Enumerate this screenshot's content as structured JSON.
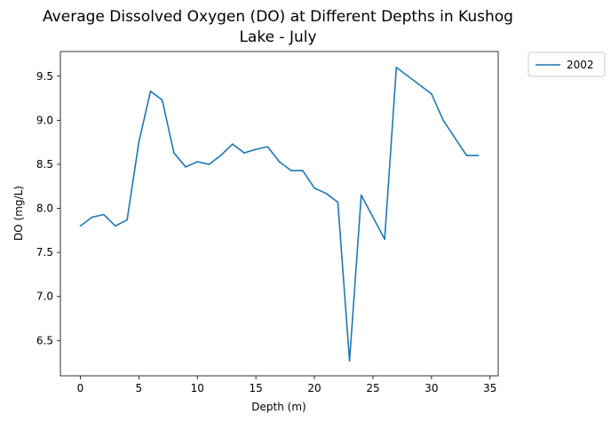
{
  "chart_data": {
    "type": "line",
    "title": "Average Dissolved Oxygen (DO) at Different Depths in Kushog Lake - July",
    "title_lines": [
      "Average Dissolved Oxygen (DO) at Different Depths in Kushog",
      "Lake - July"
    ],
    "xlabel": "Depth (m)",
    "ylabel": "DO (mg/L)",
    "xlim": [
      -1.7,
      35.7
    ],
    "ylim": [
      6.1,
      9.78
    ],
    "xticks": [
      0,
      5,
      10,
      15,
      20,
      25,
      30,
      35
    ],
    "yticks": [
      6.5,
      7.0,
      7.5,
      8.0,
      8.5,
      9.0,
      9.5
    ],
    "xtick_labels": [
      "0",
      "5",
      "10",
      "15",
      "20",
      "25",
      "30",
      "35"
    ],
    "ytick_labels": [
      "6.5",
      "7.0",
      "7.5",
      "8.0",
      "8.5",
      "9.0",
      "9.5"
    ],
    "grid": false,
    "legend_position": "outside-top-right",
    "series": [
      {
        "name": "2002",
        "color": "#1f77b4",
        "x": [
          0,
          1,
          2,
          3,
          4,
          5,
          6,
          7,
          8,
          9,
          10,
          11,
          12,
          13,
          14,
          15,
          16,
          17,
          18,
          19,
          20,
          21,
          22,
          23,
          24,
          26,
          27,
          30,
          31,
          33,
          34
        ],
        "y": [
          7.8,
          7.9,
          7.93,
          7.8,
          7.87,
          8.75,
          9.33,
          9.23,
          8.63,
          8.47,
          8.53,
          8.5,
          8.6,
          8.73,
          8.63,
          8.67,
          8.7,
          8.53,
          8.43,
          8.43,
          8.23,
          8.17,
          8.07,
          6.27,
          8.15,
          7.65,
          9.6,
          9.3,
          9.0,
          8.6,
          8.6
        ]
      }
    ]
  }
}
